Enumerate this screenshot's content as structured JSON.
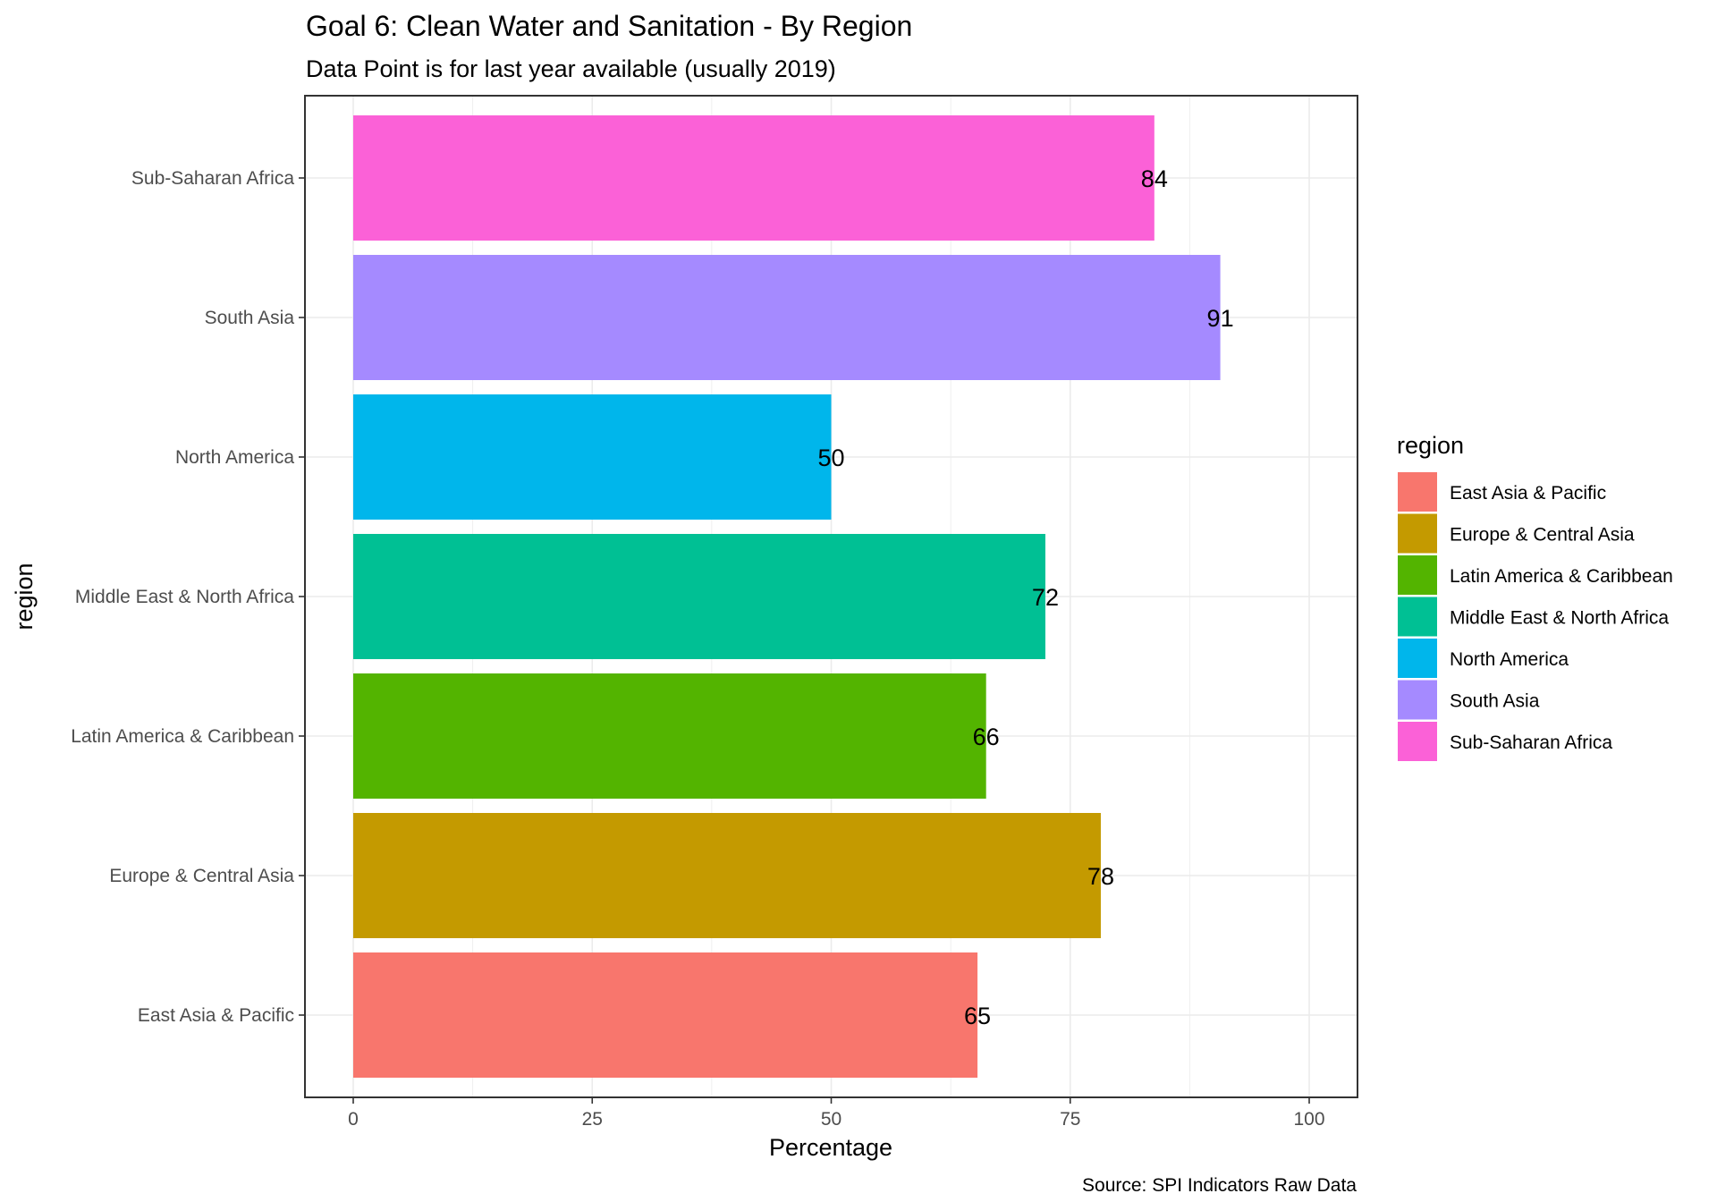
{
  "chart_data": {
    "type": "bar",
    "orientation": "horizontal",
    "title": "Goal 6: Clean Water and Sanitation - By Region",
    "subtitle": "Data Point is for last year available (usually 2019)",
    "xlabel": "Percentage",
    "ylabel": "region",
    "xlim": [
      0,
      100
    ],
    "x_ticks": [
      "0",
      "25",
      "50",
      "75",
      "100"
    ],
    "grid": true,
    "categories": [
      "East Asia & Pacific",
      "Europe & Central Asia",
      "Latin America & Caribbean",
      "Middle East & North Africa",
      "North America",
      "South Asia",
      "Sub-Saharan Africa"
    ],
    "values": [
      65.3,
      78.2,
      66.2,
      72.4,
      50,
      90.7,
      83.8
    ],
    "value_labels": [
      "65",
      "78",
      "66",
      "72",
      "50",
      "91",
      "84"
    ],
    "colors": [
      "#F8766D",
      "#C49A00",
      "#53B400",
      "#00C094",
      "#00B6EB",
      "#A58AFF",
      "#FB61D7"
    ],
    "legend": {
      "title": "region",
      "position": "right",
      "entries": [
        "East Asia & Pacific",
        "Europe & Central Asia",
        "Latin America & Caribbean",
        "Middle East & North Africa",
        "North America",
        "South Asia",
        "Sub-Saharan Africa"
      ]
    },
    "caption": "Source: SPI Indicators Raw Data"
  }
}
